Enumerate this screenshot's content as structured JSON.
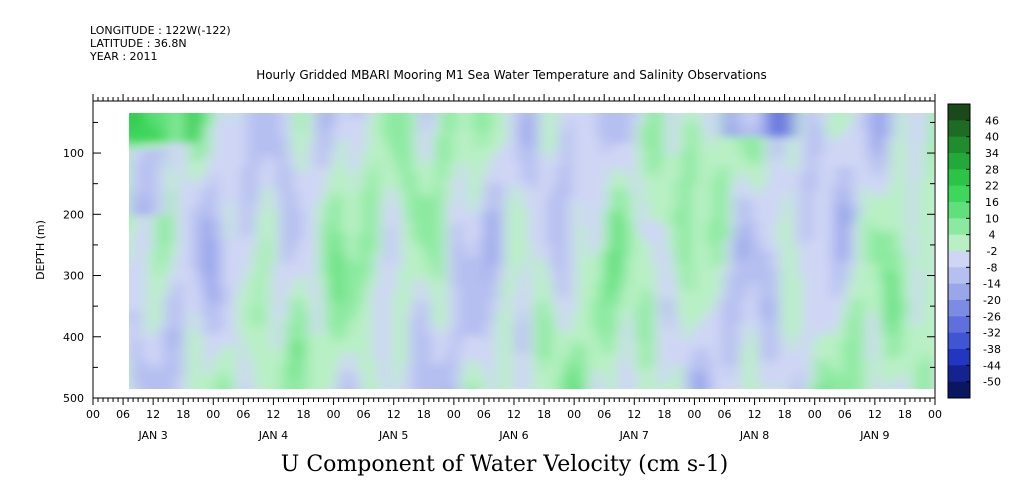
{
  "header": {
    "longitude": "LONGITUDE : 122W(-122)",
    "latitude": "LATITUDE : 36.8N",
    "year": "YEAR : 2011"
  },
  "chart_data": {
    "type": "heatmap",
    "title": "Hourly Gridded MBARI Mooring M1 Sea Water Temperature and Salinity Observations",
    "variable_label": "U Component of Water Velocity (cm s-1)",
    "ylabel": "DEPTH (m)",
    "ylim": [
      500,
      15
    ],
    "y_ticks": [
      100,
      200,
      300,
      400,
      500
    ],
    "x_hour_ticks": [
      "00",
      "06",
      "12",
      "18",
      "00",
      "06",
      "12",
      "18",
      "00",
      "06",
      "12",
      "18",
      "00",
      "06",
      "12",
      "18",
      "00",
      "06",
      "12",
      "18",
      "00",
      "06",
      "12",
      "18",
      "00",
      "06",
      "12",
      "18",
      "00"
    ],
    "x_day_labels": [
      "JAN  3",
      "JAN  4",
      "JAN  5",
      "JAN  6",
      "JAN  7",
      "JAN  8",
      "JAN  9"
    ],
    "x_range_hours": [
      0,
      168
    ],
    "data_start_hour": 6,
    "data_end_hour": 168,
    "depth_range_data": [
      15,
      485
    ],
    "colorbar": {
      "levels": [
        "46",
        "40",
        "34",
        "28",
        "22",
        "16",
        "10",
        "4",
        "-2",
        "-8",
        "-14",
        "-20",
        "-26",
        "-32",
        "-38",
        "-44",
        "-50"
      ],
      "range": [
        -50,
        50
      ],
      "colors": [
        "#1a4a1a",
        "#1e6b23",
        "#1f8c2e",
        "#23a93a",
        "#2bc447",
        "#3ed65b",
        "#5fe07a",
        "#8ceaa0",
        "#b8f0c4",
        "#cfd6f5",
        "#b5bff0",
        "#99a6ea",
        "#7d8ce3",
        "#5f70dc",
        "#3f55d4",
        "#2336c2",
        "#14238f",
        "#0a1660"
      ]
    },
    "field_summary": "alternating positive (green) and negative (blue) bands of U velocity over depth and time; strong positive near surface on Jan 3, strong negative near surface on Jan 8"
  }
}
